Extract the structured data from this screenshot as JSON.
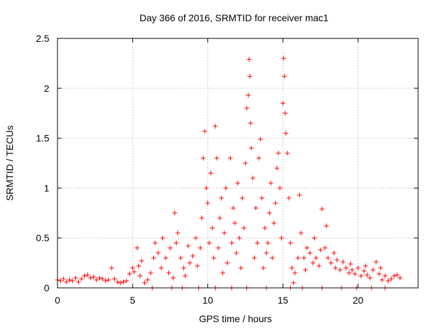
{
  "chart_data": {
    "type": "scatter",
    "title": "Day 366 of 2016, SRMTID for receiver mac1",
    "xlabel": "GPS time / hours",
    "ylabel": "SRMTID / TECUs",
    "xlim": [
      0,
      24
    ],
    "ylim": [
      0,
      2.5
    ],
    "xticks": [
      0,
      5,
      10,
      15,
      20
    ],
    "yticks": [
      0,
      0.5,
      1,
      1.5,
      2,
      2.5
    ],
    "xtick_labels": [
      "0",
      "5",
      "10",
      "15",
      "20"
    ],
    "ytick_labels": [
      "0",
      "0.5",
      "1",
      "1.5",
      "2",
      "2.5"
    ],
    "grid": true,
    "marker": "+",
    "color": "#ff0000",
    "series": [
      {
        "name": "SRMTID",
        "points": [
          [
            0.0,
            0.08
          ],
          [
            0.2,
            0.07
          ],
          [
            0.4,
            0.09
          ],
          [
            0.6,
            0.06
          ],
          [
            0.8,
            0.08
          ],
          [
            1.0,
            0.07
          ],
          [
            1.2,
            0.1
          ],
          [
            1.4,
            0.06
          ],
          [
            1.6,
            0.09
          ],
          [
            1.8,
            0.12
          ],
          [
            2.0,
            0.13
          ],
          [
            2.2,
            0.1
          ],
          [
            2.4,
            0.11
          ],
          [
            2.6,
            0.08
          ],
          [
            2.8,
            0.1
          ],
          [
            3.0,
            0.09
          ],
          [
            3.2,
            0.07
          ],
          [
            3.4,
            0.08
          ],
          [
            3.6,
            0.2
          ],
          [
            3.8,
            0.09
          ],
          [
            4.0,
            0.06
          ],
          [
            4.2,
            0.05
          ],
          [
            4.4,
            0.06
          ],
          [
            4.6,
            0.07
          ],
          [
            4.8,
            0.14
          ],
          [
            5.0,
            0.2
          ],
          [
            5.1,
            0.16
          ],
          [
            5.3,
            0.4
          ],
          [
            5.4,
            0.22
          ],
          [
            5.5,
            0.12
          ],
          [
            5.6,
            0.27
          ],
          [
            5.8,
            0.05
          ],
          [
            6.0,
            0.08
          ],
          [
            6.2,
            0.15
          ],
          [
            6.4,
            0.3
          ],
          [
            6.5,
            0.45
          ],
          [
            6.7,
            0.35
          ],
          [
            6.9,
            0.2
          ],
          [
            7.0,
            0.5
          ],
          [
            7.2,
            0.3
          ],
          [
            7.4,
            0.15
          ],
          [
            7.5,
            0.4
          ],
          [
            7.7,
            0.1
          ],
          [
            7.8,
            0.75
          ],
          [
            7.9,
            0.45
          ],
          [
            8.0,
            0.55
          ],
          [
            8.2,
            0.3
          ],
          [
            8.4,
            0.2
          ],
          [
            8.5,
            0.12
          ],
          [
            8.7,
            0.42
          ],
          [
            8.8,
            0.25
          ],
          [
            9.0,
            0.32
          ],
          [
            9.2,
            0.5
          ],
          [
            9.3,
            0.22
          ],
          [
            9.5,
            0.4
          ],
          [
            9.6,
            0.7
          ],
          [
            9.7,
            1.3
          ],
          [
            9.8,
            1.57
          ],
          [
            9.9,
            1.0
          ],
          [
            10.0,
            0.85
          ],
          [
            10.1,
            0.45
          ],
          [
            10.2,
            1.15
          ],
          [
            10.3,
            0.6
          ],
          [
            10.4,
            0.3
          ],
          [
            10.5,
            1.62
          ],
          [
            10.6,
            1.3
          ],
          [
            10.7,
            0.4
          ],
          [
            10.8,
            0.7
          ],
          [
            10.9,
            0.9
          ],
          [
            11.0,
            0.15
          ],
          [
            11.1,
            0.55
          ],
          [
            11.2,
            1.0
          ],
          [
            11.3,
            0.25
          ],
          [
            11.5,
            1.3
          ],
          [
            11.6,
            0.45
          ],
          [
            11.7,
            0.8
          ],
          [
            11.8,
            0.65
          ],
          [
            11.9,
            0.35
          ],
          [
            12.0,
            1.05
          ],
          [
            12.1,
            0.5
          ],
          [
            12.2,
            0.2
          ],
          [
            12.3,
            0.9
          ],
          [
            12.4,
            0.6
          ],
          [
            12.5,
            1.25
          ],
          [
            12.6,
            1.8
          ],
          [
            12.7,
            1.93
          ],
          [
            12.75,
            2.29
          ],
          [
            12.8,
            2.12
          ],
          [
            12.85,
            1.65
          ],
          [
            12.9,
            1.4
          ],
          [
            13.0,
            1.1
          ],
          [
            13.1,
            0.3
          ],
          [
            13.2,
            0.8
          ],
          [
            13.3,
            0.45
          ],
          [
            13.4,
            1.3
          ],
          [
            13.5,
            1.49
          ],
          [
            13.6,
            0.9
          ],
          [
            13.7,
            0.2
          ],
          [
            13.8,
            0.6
          ],
          [
            13.9,
            0.35
          ],
          [
            14.0,
            0.45
          ],
          [
            14.1,
            0.75
          ],
          [
            14.2,
            1.05
          ],
          [
            14.3,
            0.3
          ],
          [
            14.4,
            0.65
          ],
          [
            14.5,
            0.85
          ],
          [
            14.6,
            1.2
          ],
          [
            14.7,
            1.35
          ],
          [
            14.8,
            1.0
          ],
          [
            14.9,
            0.5
          ],
          [
            15.0,
            1.85
          ],
          [
            15.05,
            2.3
          ],
          [
            15.1,
            2.12
          ],
          [
            15.15,
            1.75
          ],
          [
            15.2,
            1.55
          ],
          [
            15.3,
            1.35
          ],
          [
            15.4,
            0.9
          ],
          [
            15.5,
            0.45
          ],
          [
            15.6,
            0.2
          ],
          [
            15.7,
            0.05
          ],
          [
            15.8,
            0.15
          ],
          [
            16.0,
            0.3
          ],
          [
            16.1,
            0.93
          ],
          [
            16.2,
            0.55
          ],
          [
            16.4,
            0.3
          ],
          [
            16.5,
            0.18
          ],
          [
            16.6,
            0.4
          ],
          [
            16.8,
            0.35
          ],
          [
            17.0,
            0.25
          ],
          [
            17.1,
            0.5
          ],
          [
            17.2,
            0.3
          ],
          [
            17.4,
            0.22
          ],
          [
            17.5,
            0.38
          ],
          [
            17.6,
            0.79
          ],
          [
            17.8,
            0.4
          ],
          [
            17.9,
            0.62
          ],
          [
            18.0,
            0.3
          ],
          [
            18.2,
            0.25
          ],
          [
            18.4,
            0.35
          ],
          [
            18.5,
            0.2
          ],
          [
            18.6,
            0.28
          ],
          [
            18.8,
            0.18
          ],
          [
            19.0,
            0.26
          ],
          [
            19.2,
            0.2
          ],
          [
            19.4,
            0.15
          ],
          [
            19.5,
            0.24
          ],
          [
            19.6,
            0.18
          ],
          [
            19.8,
            0.14
          ],
          [
            20.0,
            0.2
          ],
          [
            20.2,
            0.12
          ],
          [
            20.4,
            0.17
          ],
          [
            20.5,
            0.22
          ],
          [
            20.6,
            0.13
          ],
          [
            20.8,
            0.1
          ],
          [
            21.0,
            0.18
          ],
          [
            21.2,
            0.26
          ],
          [
            21.4,
            0.14
          ],
          [
            21.5,
            0.2
          ],
          [
            21.6,
            0.08
          ],
          [
            21.8,
            0.12
          ],
          [
            22.0,
            0.07
          ],
          [
            22.2,
            0.09
          ],
          [
            22.4,
            0.12
          ],
          [
            22.6,
            0.13
          ],
          [
            22.8,
            0.1
          ],
          [
            9.4,
            0.0
          ],
          [
            10.5,
            0.0
          ],
          [
            11.6,
            0.0
          ],
          [
            12.6,
            0.0
          ],
          [
            13.9,
            0.0
          ],
          [
            15.5,
            0.0
          ],
          [
            16.3,
            0.0
          ],
          [
            17.6,
            0.0
          ],
          [
            18.9,
            0.0
          ],
          [
            19.9,
            0.0
          ],
          [
            20.9,
            0.0
          ],
          [
            21.8,
            0.0
          ],
          [
            6.3,
            0.0
          ],
          [
            7.6,
            0.0
          ],
          [
            8.3,
            0.0
          ]
        ]
      }
    ]
  }
}
